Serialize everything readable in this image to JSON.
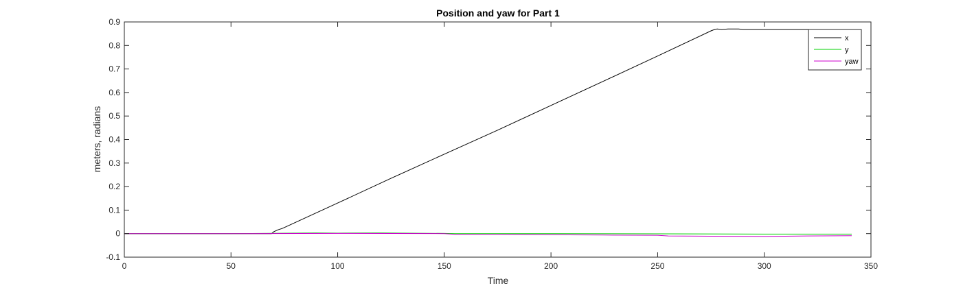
{
  "chart_data": {
    "type": "line",
    "title": "Position and yaw for Part 1",
    "xlabel": "Time",
    "ylabel": "meters, radians",
    "xlim": [
      0,
      350
    ],
    "ylim": [
      -0.1,
      0.9
    ],
    "xticks": [
      "0",
      "50",
      "100",
      "150",
      "200",
      "250",
      "300",
      "350"
    ],
    "yticks": [
      "-0.1",
      "0",
      "0.1",
      "0.2",
      "0.3",
      "0.4",
      "0.5",
      "0.6",
      "0.7",
      "0.8",
      "0.9"
    ],
    "grid": false,
    "legend_position": "top-right",
    "series": [
      {
        "name": "x",
        "color": "#000000",
        "x": [
          0,
          69,
          70,
          72,
          74,
          75,
          100,
          125,
          150,
          175,
          200,
          225,
          250,
          275,
          277,
          278,
          280,
          283,
          285,
          288,
          290,
          300,
          320,
          341
        ],
        "y": [
          0,
          0,
          0.008,
          0.016,
          0.022,
          0.026,
          0.13,
          0.235,
          0.338,
          0.44,
          0.545,
          0.65,
          0.755,
          0.862,
          0.869,
          0.87,
          0.868,
          0.87,
          0.87,
          0.87,
          0.868,
          0.868,
          0.868,
          0.868
        ]
      },
      {
        "name": "y",
        "color": "#00d000",
        "x": [
          0,
          50,
          80,
          90,
          100,
          120,
          150,
          155,
          200,
          250,
          300,
          341
        ],
        "y": [
          0,
          0,
          0.002,
          0.003,
          0.002,
          0.003,
          0.001,
          0.0,
          0.0,
          -0.001,
          -0.002,
          -0.002
        ]
      },
      {
        "name": "yaw",
        "color": "#cc00cc",
        "x": [
          0,
          50,
          100,
          150,
          155,
          175,
          200,
          225,
          250,
          255,
          275,
          300,
          320,
          341
        ],
        "y": [
          0,
          0,
          0.001,
          0.0,
          -0.003,
          -0.003,
          -0.005,
          -0.006,
          -0.007,
          -0.01,
          -0.011,
          -0.012,
          -0.01,
          -0.009
        ]
      }
    ]
  }
}
